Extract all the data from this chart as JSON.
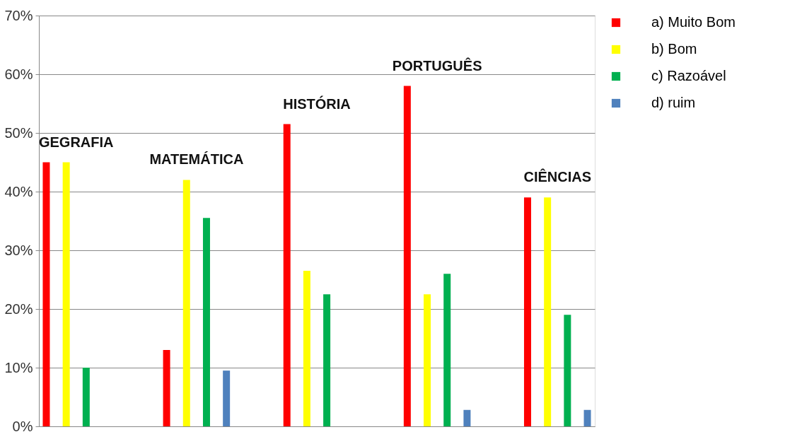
{
  "chart_data": {
    "type": "bar",
    "categories": [
      "GEGRAFIA",
      "MATEMÁTICA",
      "HISTÓRIA",
      "PORTUGUÊS",
      "CIÊNCIAS"
    ],
    "series": [
      {
        "name": "a) Muito  Bom",
        "color": "#ff0000",
        "values": [
          45,
          13,
          51.5,
          58,
          39
        ]
      },
      {
        "name": "b) Bom",
        "color": "#ffff00",
        "values": [
          45,
          42,
          26.5,
          22.5,
          39
        ]
      },
      {
        "name": "c) Razoável",
        "color": "#00b050",
        "values": [
          10,
          35.5,
          22.5,
          26,
          19
        ]
      },
      {
        "name": "d) ruim",
        "color": "#4f81bd",
        "values": [
          null,
          9.5,
          null,
          2.8,
          2.8
        ]
      }
    ],
    "ylim": [
      0,
      70
    ],
    "yticks": [
      {
        "value": 0,
        "label": "0%"
      },
      {
        "value": 10,
        "label": "10%"
      },
      {
        "value": 20,
        "label": "20%"
      },
      {
        "value": 30,
        "label": "30%"
      },
      {
        "value": 40,
        "label": "40%"
      },
      {
        "value": 50,
        "label": "50%"
      },
      {
        "value": 60,
        "label": "60%"
      },
      {
        "value": 70,
        "label": "70%"
      }
    ],
    "grid": "y",
    "legend": "right",
    "tick_labels": "y"
  }
}
